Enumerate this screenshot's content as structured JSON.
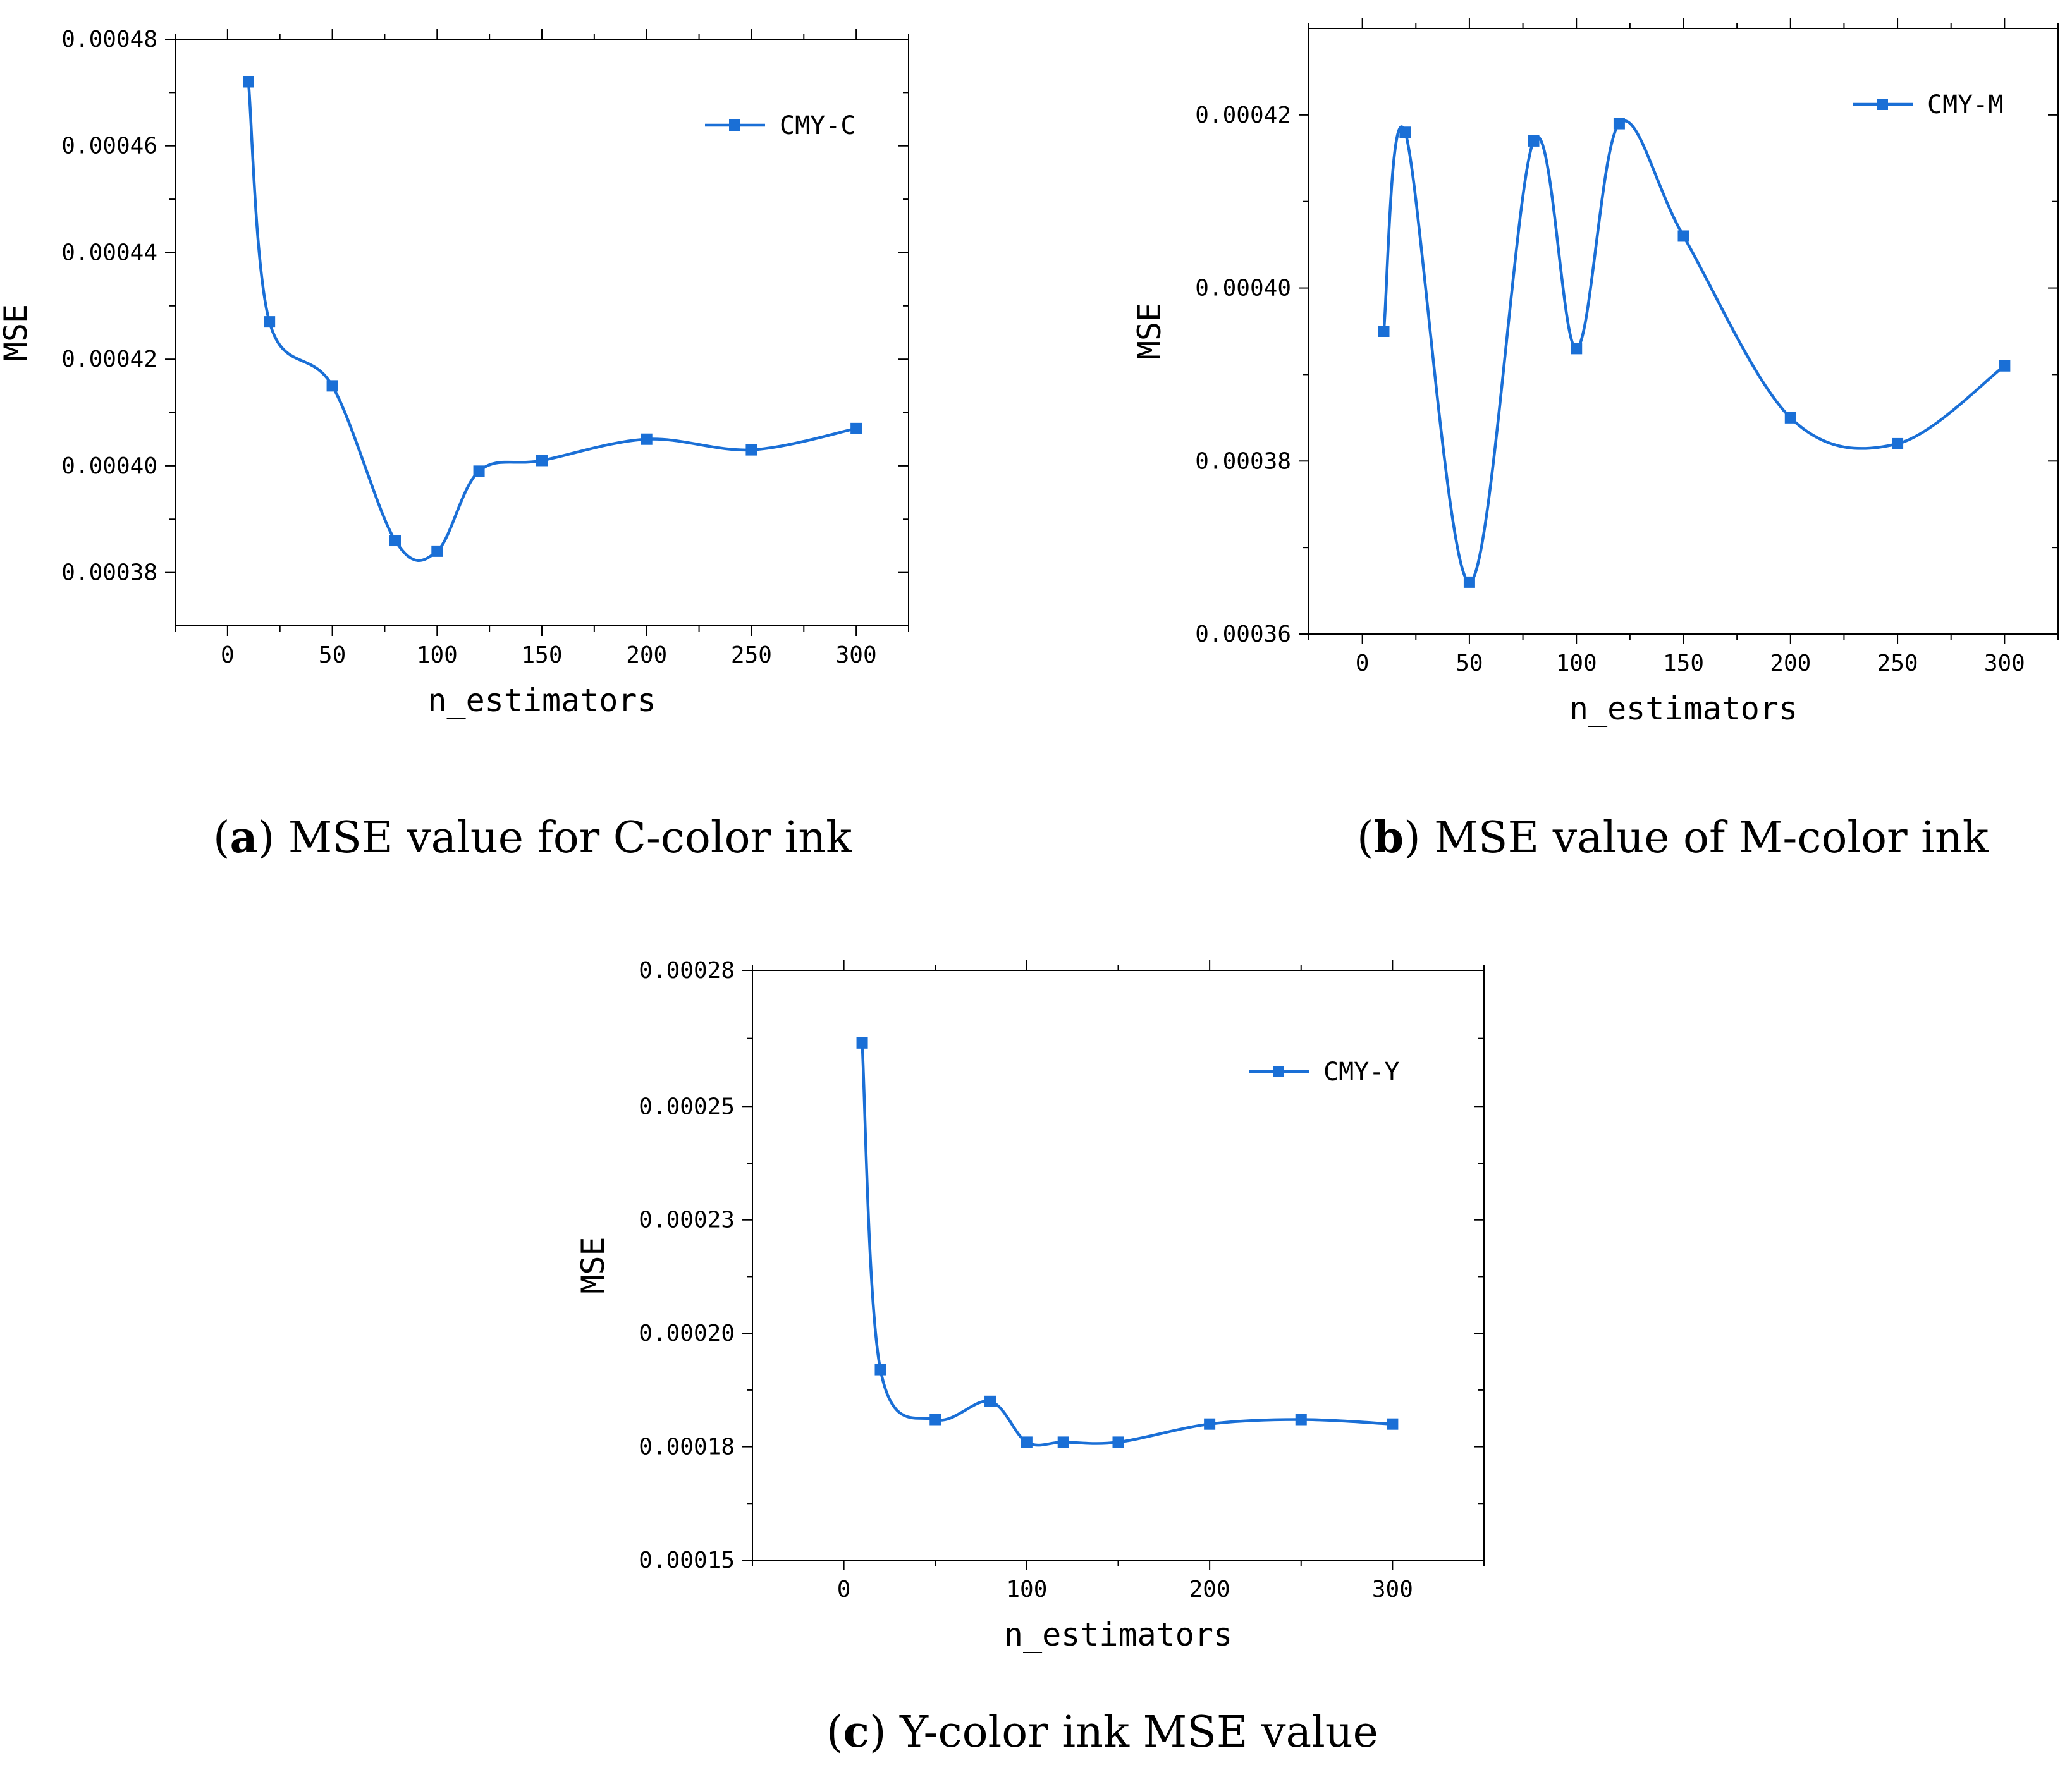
{
  "series_color": "#1a6fd6",
  "chart_data": [
    {
      "type": "line",
      "id": "a",
      "x": [
        10,
        20,
        50,
        80,
        100,
        120,
        150,
        200,
        250,
        300
      ],
      "series": [
        {
          "name": "CMY-C",
          "values": [
            0.000472,
            0.000427,
            0.000415,
            0.000386,
            0.000384,
            0.000399,
            0.000401,
            0.000405,
            0.000403,
            0.000407
          ]
        }
      ],
      "xlim": [
        -25,
        325
      ],
      "ylim": [
        0.00037,
        0.00048
      ],
      "xticks": [
        0,
        50,
        100,
        150,
        200,
        250,
        300
      ],
      "yticks": [
        0.00038,
        0.0004,
        0.00042,
        0.00044,
        0.00046,
        0.00048
      ],
      "ytick_labels": [
        "0.00038",
        "0.00040",
        "0.00042",
        "0.00044",
        "0.00046",
        "0.00048"
      ],
      "xlabel": "n_estimators",
      "ylabel": "MSE",
      "legend": "top-right",
      "caption_letter": "a",
      "caption_text": "MSE value for C-color ink"
    },
    {
      "type": "line",
      "id": "b",
      "x": [
        10,
        20,
        50,
        80,
        100,
        120,
        150,
        200,
        250,
        300
      ],
      "series": [
        {
          "name": "CMY-M",
          "values": [
            0.000395,
            0.000418,
            0.000366,
            0.000417,
            0.000393,
            0.000419,
            0.000406,
            0.000385,
            0.000382,
            0.000391
          ]
        }
      ],
      "xlim": [
        -25,
        325
      ],
      "ylim": [
        0.00036,
        0.00043
      ],
      "xticks": [
        0,
        50,
        100,
        150,
        200,
        250,
        300
      ],
      "yticks": [
        0.00036,
        0.00038,
        0.0004,
        0.00042
      ],
      "ytick_labels": [
        "0.00036",
        "0.00038",
        "0.00040",
        "0.00042"
      ],
      "xlabel": "n_estimators",
      "ylabel": "MSE",
      "legend": "top-right",
      "caption_letter": "b",
      "caption_text": "MSE value of M-color ink"
    },
    {
      "type": "line",
      "id": "c",
      "x": [
        10,
        20,
        50,
        80,
        100,
        120,
        150,
        200,
        250,
        300
      ],
      "series": [
        {
          "name": "CMY-Y",
          "values": [
            0.000264,
            0.000192,
            0.000181,
            0.000185,
            0.000176,
            0.000176,
            0.000176,
            0.00018,
            0.000181,
            0.00018
          ]
        }
      ],
      "xlim": [
        -50,
        350
      ],
      "ylim": [
        0.00015,
        0.00028
      ],
      "xticks": [
        0,
        100,
        200,
        300
      ],
      "yticks": [
        0.00015,
        0.000175,
        0.0002,
        0.000225,
        0.00025,
        0.00028
      ],
      "ytick_labels": [
        "0.00015",
        "0.00018",
        "0.00020",
        "0.00023",
        "0.00025",
        "0.00028"
      ],
      "xlabel": "n_estimators",
      "ylabel": "MSE",
      "legend": "top-right",
      "caption_letter": "c",
      "caption_text": "Y-color ink MSE value"
    }
  ]
}
